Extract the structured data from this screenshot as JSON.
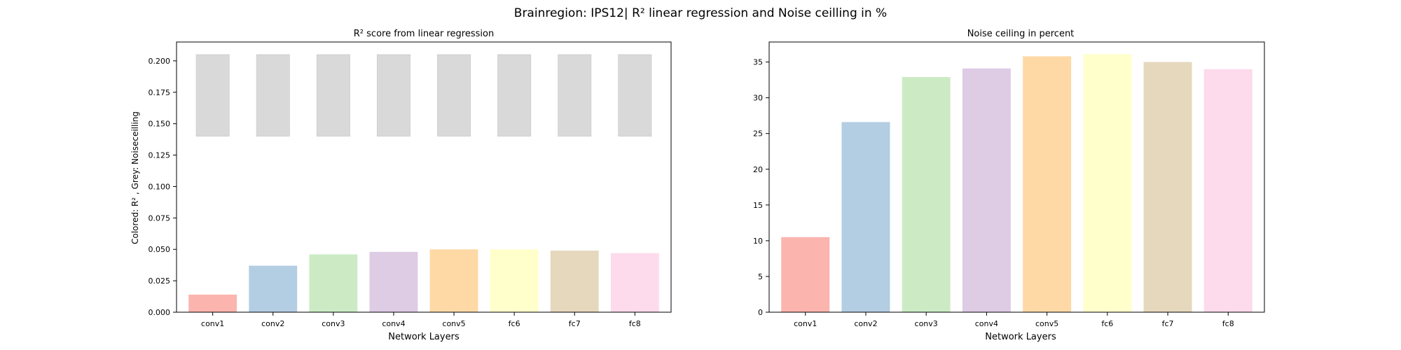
{
  "figure": {
    "suptitle": "Brainregion: IPS12| R² linear regression and Noise ceilling in %"
  },
  "chart_data": [
    {
      "type": "bar",
      "title": "R² score from linear regression",
      "xlabel": "Network Layers",
      "ylabel": "Colored: R² , Grey: Noiseceilling",
      "categories": [
        "conv1",
        "conv2",
        "conv3",
        "conv4",
        "conv5",
        "fc6",
        "fc7",
        "fc8"
      ],
      "ylim": [
        0,
        0.215
      ],
      "yticks": [
        "0.000",
        "0.025",
        "0.050",
        "0.075",
        "0.100",
        "0.125",
        "0.150",
        "0.175",
        "0.200"
      ],
      "series": [
        {
          "values": [
            0.014,
            0.037,
            0.046,
            0.048,
            0.05,
            0.05,
            0.049,
            0.047
          ]
        },
        {
          "values": [
            [
              0.14,
              0.205
            ],
            [
              0.14,
              0.205
            ],
            [
              0.14,
              0.205
            ],
            [
              0.14,
              0.205
            ],
            [
              0.14,
              0.205
            ],
            [
              0.14,
              0.205
            ],
            [
              0.14,
              0.205
            ],
            [
              0.14,
              0.205
            ]
          ]
        }
      ],
      "colors": [
        "#fbb4ae",
        "#b3cde3",
        "#ccebc5",
        "#decbe4",
        "#fed9a6",
        "#ffffcc",
        "#e5d8bd",
        "#fddaec"
      ],
      "grey_color": "#d9d9d9",
      "grid": false
    },
    {
      "type": "bar",
      "title": "Noise ceiling in percent",
      "xlabel": "Network Layers",
      "ylabel": "",
      "categories": [
        "conv1",
        "conv2",
        "conv3",
        "conv4",
        "conv5",
        "fc6",
        "fc7",
        "fc8"
      ],
      "ylim": [
        0,
        37.8
      ],
      "yticks": [
        "0",
        "5",
        "10",
        "15",
        "20",
        "25",
        "30",
        "35"
      ],
      "series": [
        {
          "values": [
            10.5,
            26.6,
            32.9,
            34.1,
            35.8,
            36.1,
            35.0,
            34.0
          ]
        }
      ],
      "colors": [
        "#fbb4ae",
        "#b3cde3",
        "#ccebc5",
        "#decbe4",
        "#fed9a6",
        "#ffffcc",
        "#e5d8bd",
        "#fddaec"
      ],
      "grid": false
    }
  ]
}
